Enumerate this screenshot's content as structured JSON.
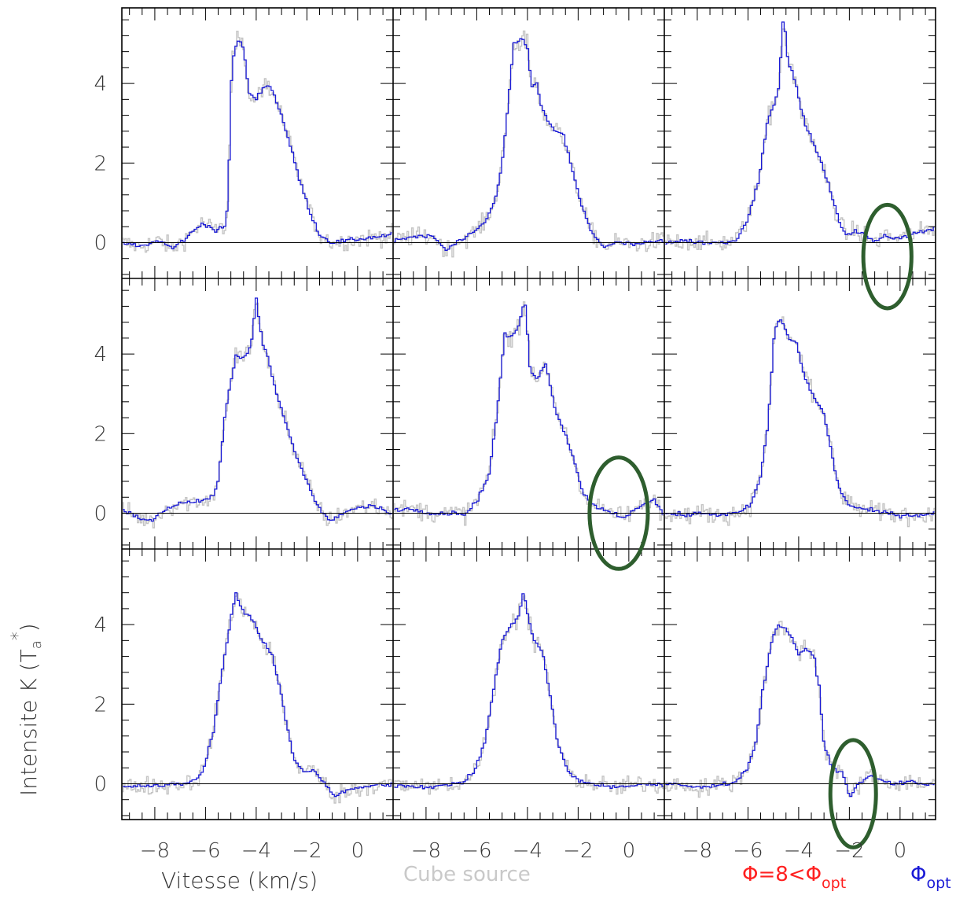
{
  "chart_data": {
    "type": "line",
    "layout": "3x3 grid of spectra panels",
    "xlabel": "Vitesse (km/s)",
    "ylabel": "Intensite K (T",
    "ylabel_sub": "a",
    "ylabel_sup": "*",
    "ylabel_close": ")",
    "xlim": [
      -9.3,
      1.4
    ],
    "ylim": [
      -0.9,
      5.9
    ],
    "x_ticks": [
      -8,
      -6,
      -4,
      -2,
      0
    ],
    "x_tick_labels": [
      "−8",
      "−6",
      "−4",
      "−2",
      "0"
    ],
    "y_ticks": [
      0,
      2,
      4
    ],
    "y_tick_labels": [
      "0",
      "2",
      "4"
    ],
    "grid": false,
    "series": [
      {
        "name": "Cube source",
        "color": "#c4c4c4",
        "style": "noisy histogram"
      },
      {
        "name": "Φ=8<Φopt",
        "color": "#ff2020"
      },
      {
        "name": "Φopt",
        "color": "#1a1ad6",
        "style": "smooth histogram"
      }
    ],
    "legend": {
      "position": "bottom",
      "cube_label": "Cube source",
      "phi8_main": "Φ=8<Φ",
      "phi8_sub": "opt",
      "phiopt_main": "Φ",
      "phiopt_sub": "opt"
    },
    "highlight_color": "#2e5e2e",
    "panels": [
      {
        "row": 0,
        "col": 0,
        "profile": [
          [
            -9.3,
            0.0
          ],
          [
            -8.6,
            -0.1
          ],
          [
            -7.8,
            0.05
          ],
          [
            -7.3,
            -0.15
          ],
          [
            -6.8,
            0.1
          ],
          [
            -6.1,
            0.5
          ],
          [
            -5.6,
            0.3
          ],
          [
            -5.2,
            0.4
          ],
          [
            -5.1,
            1.3
          ],
          [
            -4.95,
            4.6
          ],
          [
            -4.7,
            5.1
          ],
          [
            -4.5,
            4.9
          ],
          [
            -4.3,
            3.8
          ],
          [
            -4.0,
            3.6
          ],
          [
            -3.7,
            3.95
          ],
          [
            -3.4,
            3.9
          ],
          [
            -3.0,
            3.2
          ],
          [
            -2.6,
            2.3
          ],
          [
            -2.3,
            1.6
          ],
          [
            -1.9,
            0.8
          ],
          [
            -1.5,
            0.2
          ],
          [
            -1.0,
            0.0
          ],
          [
            -0.4,
            0.05
          ],
          [
            0.2,
            0.1
          ],
          [
            0.8,
            0.15
          ],
          [
            1.4,
            0.2
          ]
        ],
        "highlight": null
      },
      {
        "row": 0,
        "col": 1,
        "profile": [
          [
            -9.3,
            0.05
          ],
          [
            -8.5,
            0.15
          ],
          [
            -7.7,
            0.15
          ],
          [
            -7.2,
            -0.2
          ],
          [
            -6.8,
            0.0
          ],
          [
            -6.2,
            0.2
          ],
          [
            -5.7,
            0.5
          ],
          [
            -5.3,
            1.0
          ],
          [
            -5.0,
            2.0
          ],
          [
            -4.75,
            3.5
          ],
          [
            -4.55,
            5.0
          ],
          [
            -4.2,
            5.1
          ],
          [
            -4.0,
            4.95
          ],
          [
            -3.85,
            3.9
          ],
          [
            -3.65,
            4.0
          ],
          [
            -3.4,
            3.3
          ],
          [
            -3.0,
            2.85
          ],
          [
            -2.6,
            2.75
          ],
          [
            -2.3,
            2.0
          ],
          [
            -1.9,
            1.0
          ],
          [
            -1.5,
            0.3
          ],
          [
            -1.0,
            -0.1
          ],
          [
            -0.4,
            0.0
          ],
          [
            0.2,
            -0.05
          ],
          [
            0.8,
            0.0
          ],
          [
            1.4,
            0.05
          ]
        ],
        "highlight": null
      },
      {
        "row": 0,
        "col": 2,
        "profile": [
          [
            -9.3,
            0.0
          ],
          [
            -8.5,
            0.05
          ],
          [
            -7.7,
            0.0
          ],
          [
            -7.0,
            0.0
          ],
          [
            -6.5,
            0.05
          ],
          [
            -6.0,
            0.6
          ],
          [
            -5.6,
            1.5
          ],
          [
            -5.2,
            3.2
          ],
          [
            -5.0,
            3.4
          ],
          [
            -4.8,
            3.8
          ],
          [
            -4.6,
            5.7
          ],
          [
            -4.4,
            4.5
          ],
          [
            -4.1,
            4.0
          ],
          [
            -3.9,
            3.3
          ],
          [
            -3.5,
            2.6
          ],
          [
            -3.1,
            2.0
          ],
          [
            -2.7,
            1.2
          ],
          [
            -2.4,
            0.5
          ],
          [
            -2.1,
            0.2
          ],
          [
            -1.8,
            0.3
          ],
          [
            -1.4,
            0.2
          ],
          [
            -1.0,
            0.0
          ],
          [
            -0.6,
            0.2
          ],
          [
            -0.2,
            0.1
          ],
          [
            0.4,
            0.2
          ],
          [
            1.0,
            0.3
          ],
          [
            1.4,
            0.35
          ]
        ],
        "highlight": {
          "x": -0.5,
          "y": -0.35,
          "rx": 0.95,
          "ry": 1.3
        }
      },
      {
        "row": 1,
        "col": 0,
        "profile": [
          [
            -9.3,
            0.1
          ],
          [
            -8.7,
            -0.1
          ],
          [
            -8.1,
            -0.2
          ],
          [
            -7.6,
            0.1
          ],
          [
            -7.0,
            0.25
          ],
          [
            -6.3,
            0.3
          ],
          [
            -5.7,
            0.4
          ],
          [
            -5.5,
            0.8
          ],
          [
            -5.2,
            2.6
          ],
          [
            -4.8,
            4.0
          ],
          [
            -4.5,
            3.9
          ],
          [
            -4.2,
            4.2
          ],
          [
            -4.0,
            5.4
          ],
          [
            -3.75,
            4.3
          ],
          [
            -3.5,
            3.8
          ],
          [
            -3.2,
            3.0
          ],
          [
            -2.8,
            2.2
          ],
          [
            -2.4,
            1.4
          ],
          [
            -2.0,
            0.8
          ],
          [
            -1.6,
            0.2
          ],
          [
            -1.1,
            -0.2
          ],
          [
            -0.6,
            0.0
          ],
          [
            0.0,
            0.15
          ],
          [
            0.6,
            0.2
          ],
          [
            1.4,
            0.0
          ]
        ],
        "highlight": null
      },
      {
        "row": 1,
        "col": 1,
        "profile": [
          [
            -9.3,
            0.1
          ],
          [
            -8.5,
            0.1
          ],
          [
            -7.7,
            0.0
          ],
          [
            -7.0,
            0.0
          ],
          [
            -6.4,
            0.0
          ],
          [
            -6.0,
            0.3
          ],
          [
            -5.5,
            1.0
          ],
          [
            -5.2,
            2.5
          ],
          [
            -4.9,
            4.5
          ],
          [
            -4.6,
            4.4
          ],
          [
            -4.3,
            4.8
          ],
          [
            -4.1,
            5.4
          ],
          [
            -3.9,
            3.6
          ],
          [
            -3.6,
            3.4
          ],
          [
            -3.3,
            3.8
          ],
          [
            -2.9,
            2.6
          ],
          [
            -2.5,
            2.0
          ],
          [
            -2.1,
            1.2
          ],
          [
            -1.8,
            0.5
          ],
          [
            -1.4,
            0.2
          ],
          [
            -1.0,
            0.1
          ],
          [
            -0.6,
            0.0
          ],
          [
            -0.2,
            -0.1
          ],
          [
            0.2,
            0.05
          ],
          [
            0.6,
            0.2
          ],
          [
            1.0,
            0.35
          ],
          [
            1.4,
            -0.1
          ]
        ],
        "highlight": {
          "x": -0.4,
          "y": 0.0,
          "rx": 1.15,
          "ry": 1.4
        }
      },
      {
        "row": 1,
        "col": 2,
        "profile": [
          [
            -9.3,
            0.0
          ],
          [
            -8.5,
            -0.05
          ],
          [
            -7.7,
            0.0
          ],
          [
            -7.0,
            -0.05
          ],
          [
            -6.4,
            0.0
          ],
          [
            -5.9,
            0.2
          ],
          [
            -5.5,
            0.9
          ],
          [
            -5.2,
            2.3
          ],
          [
            -4.95,
            4.6
          ],
          [
            -4.7,
            4.9
          ],
          [
            -4.4,
            4.4
          ],
          [
            -4.1,
            4.3
          ],
          [
            -3.8,
            3.5
          ],
          [
            -3.4,
            2.9
          ],
          [
            -3.0,
            2.5
          ],
          [
            -2.7,
            1.5
          ],
          [
            -2.4,
            0.6
          ],
          [
            -2.0,
            0.2
          ],
          [
            -1.5,
            0.1
          ],
          [
            -1.0,
            0.05
          ],
          [
            -0.5,
            0.0
          ],
          [
            0.0,
            -0.05
          ],
          [
            0.6,
            -0.05
          ],
          [
            1.4,
            0.0
          ]
        ],
        "highlight": null
      },
      {
        "row": 2,
        "col": 0,
        "profile": [
          [
            -9.3,
            -0.1
          ],
          [
            -8.5,
            -0.05
          ],
          [
            -7.7,
            -0.05
          ],
          [
            -7.0,
            0.0
          ],
          [
            -6.5,
            0.05
          ],
          [
            -6.1,
            0.3
          ],
          [
            -5.7,
            1.3
          ],
          [
            -5.4,
            2.6
          ],
          [
            -5.1,
            3.8
          ],
          [
            -4.8,
            4.8
          ],
          [
            -4.5,
            4.3
          ],
          [
            -4.2,
            4.2
          ],
          [
            -4.0,
            3.9
          ],
          [
            -3.7,
            3.5
          ],
          [
            -3.4,
            3.3
          ],
          [
            -3.1,
            2.5
          ],
          [
            -2.8,
            1.5
          ],
          [
            -2.5,
            0.6
          ],
          [
            -2.1,
            0.3
          ],
          [
            -1.7,
            0.35
          ],
          [
            -1.3,
            0.0
          ],
          [
            -0.9,
            -0.3
          ],
          [
            -0.5,
            -0.2
          ],
          [
            0.0,
            -0.1
          ],
          [
            0.6,
            -0.05
          ],
          [
            1.4,
            0.0
          ]
        ],
        "highlight": null
      },
      {
        "row": 2,
        "col": 1,
        "profile": [
          [
            -9.3,
            -0.05
          ],
          [
            -8.5,
            -0.05
          ],
          [
            -7.7,
            -0.1
          ],
          [
            -7.0,
            0.0
          ],
          [
            -6.5,
            0.05
          ],
          [
            -6.1,
            0.3
          ],
          [
            -5.7,
            1.0
          ],
          [
            -5.3,
            2.5
          ],
          [
            -5.0,
            3.6
          ],
          [
            -4.7,
            3.95
          ],
          [
            -4.4,
            4.1
          ],
          [
            -4.15,
            4.85
          ],
          [
            -4.0,
            4.3
          ],
          [
            -3.75,
            3.6
          ],
          [
            -3.4,
            3.3
          ],
          [
            -3.1,
            2.2
          ],
          [
            -2.8,
            1.0
          ],
          [
            -2.4,
            0.3
          ],
          [
            -2.0,
            0.1
          ],
          [
            -1.5,
            0.0
          ],
          [
            -1.0,
            -0.05
          ],
          [
            -0.5,
            -0.1
          ],
          [
            0.0,
            -0.05
          ],
          [
            0.6,
            0.0
          ],
          [
            1.4,
            -0.05
          ]
        ],
        "highlight": null
      },
      {
        "row": 2,
        "col": 2,
        "profile": [
          [
            -9.3,
            0.0
          ],
          [
            -8.5,
            -0.05
          ],
          [
            -7.7,
            -0.1
          ],
          [
            -7.0,
            0.0
          ],
          [
            -6.5,
            0.05
          ],
          [
            -6.1,
            0.3
          ],
          [
            -5.7,
            1.0
          ],
          [
            -5.4,
            2.4
          ],
          [
            -5.1,
            3.5
          ],
          [
            -4.8,
            4.0
          ],
          [
            -4.5,
            3.9
          ],
          [
            -4.2,
            3.6
          ],
          [
            -4.0,
            3.2
          ],
          [
            -3.7,
            3.4
          ],
          [
            -3.4,
            3.2
          ],
          [
            -3.2,
            2.5
          ],
          [
            -3.0,
            1.0
          ],
          [
            -2.7,
            0.4
          ],
          [
            -2.3,
            0.3
          ],
          [
            -2.0,
            -0.3
          ],
          [
            -1.6,
            0.0
          ],
          [
            -1.2,
            0.2
          ],
          [
            -0.8,
            0.1
          ],
          [
            -0.3,
            0.0
          ],
          [
            0.3,
            0.05
          ],
          [
            0.9,
            0.0
          ],
          [
            1.4,
            0.0
          ]
        ],
        "highlight": {
          "x": -1.85,
          "y": -0.25,
          "rx": 0.9,
          "ry": 1.35
        }
      }
    ]
  }
}
